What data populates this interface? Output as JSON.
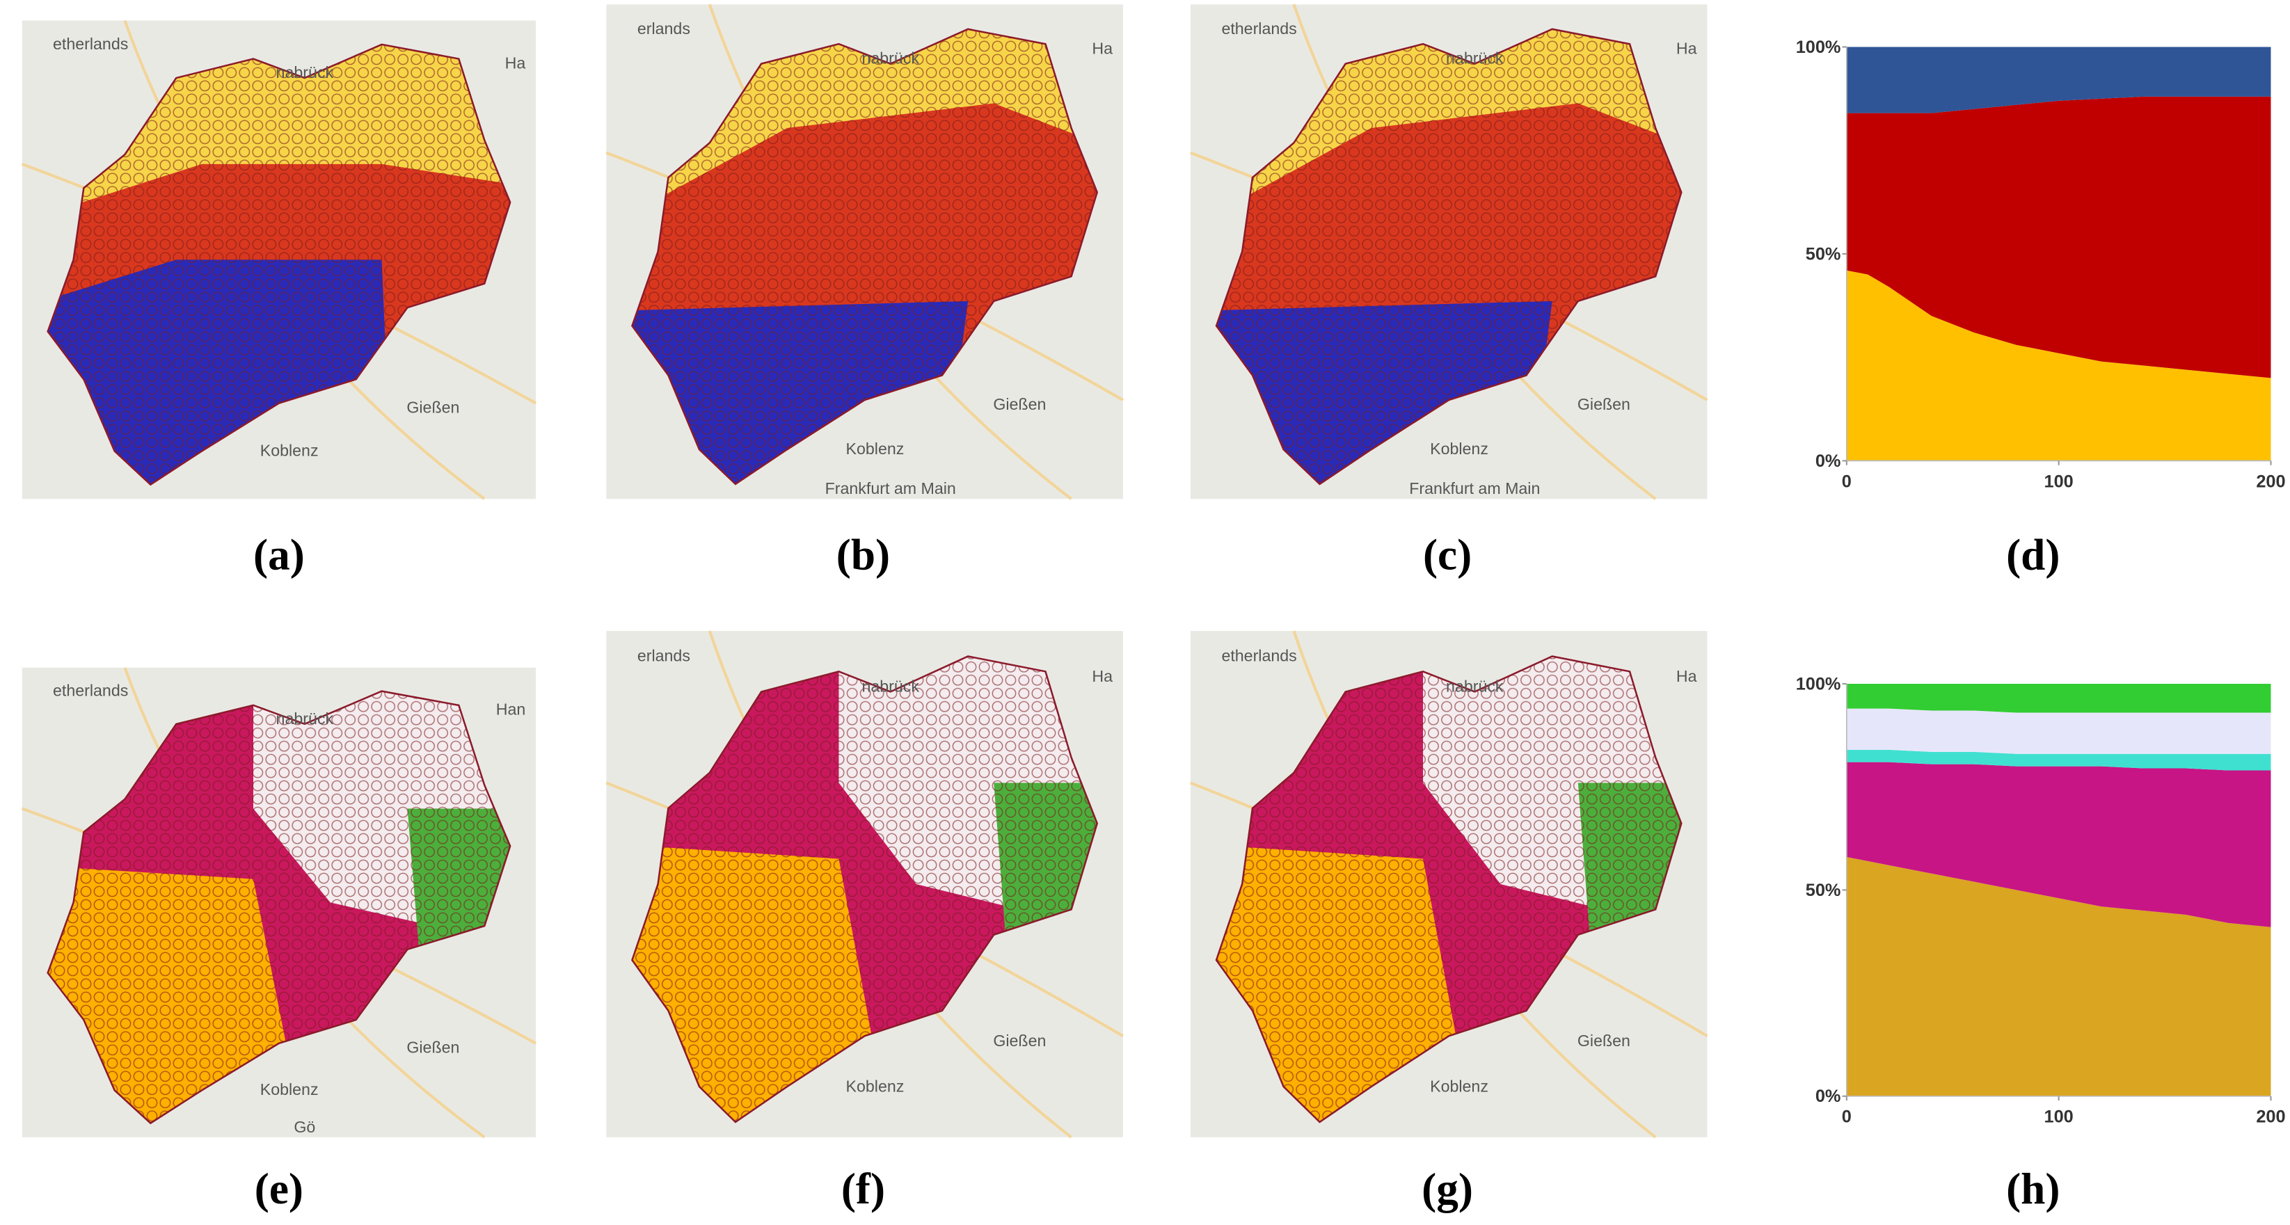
{
  "panels": [
    {
      "caption": "(a)",
      "map_labels": [
        "etherlands",
        "nabrück",
        "Ha",
        "Gießen",
        "Koblenz"
      ]
    },
    {
      "caption": "(b)",
      "map_labels": [
        "erlands",
        "nabrück",
        "Ha",
        "Gießen",
        "Koblenz",
        "Frankfurt am Main"
      ]
    },
    {
      "caption": "(c)",
      "map_labels": [
        "etherlands",
        "nabrück",
        "Ha",
        "Gießen",
        "Koblenz",
        "Frankfurt am Main"
      ]
    },
    {
      "caption": "(e)",
      "map_labels": [
        "etherlands",
        "nabrück",
        "Han",
        "Gießen",
        "Koblenz",
        "Gö"
      ]
    },
    {
      "caption": "(f)",
      "map_labels": [
        "erlands",
        "nabrück",
        "Ha",
        "Gießen",
        "Koblenz"
      ]
    },
    {
      "caption": "(g)",
      "map_labels": [
        "etherlands",
        "nabrück",
        "Ha",
        "Gießen",
        "Koblenz"
      ]
    }
  ],
  "chart_data": [
    {
      "type": "area",
      "stacked": true,
      "caption": "(d)",
      "x": [
        0,
        10,
        20,
        40,
        60,
        80,
        100,
        120,
        140,
        160,
        180,
        200
      ],
      "xlim": [
        0,
        200
      ],
      "xticks": [
        0,
        100,
        200
      ],
      "ylim": [
        0,
        100
      ],
      "yticks": [
        {
          "value": 0,
          "label": "0%"
        },
        {
          "value": 50,
          "label": "50%"
        },
        {
          "value": 100,
          "label": "100%"
        }
      ],
      "series": [
        {
          "color": "#ffc000",
          "values": [
            46,
            45,
            42,
            35,
            31,
            28,
            26,
            24,
            23,
            22,
            21,
            20
          ]
        },
        {
          "color": "#c00000",
          "values": [
            38,
            39,
            42,
            49,
            54,
            58,
            61,
            63.5,
            65,
            66,
            67,
            68
          ]
        },
        {
          "color": "#2f5597",
          "values": [
            16,
            16,
            16,
            16,
            15,
            14,
            13,
            12.5,
            12,
            12,
            12,
            12
          ]
        }
      ]
    },
    {
      "type": "area",
      "stacked": true,
      "caption": "(h)",
      "x": [
        0,
        20,
        40,
        60,
        80,
        100,
        120,
        140,
        160,
        180,
        200
      ],
      "xlim": [
        0,
        200
      ],
      "xticks": [
        0,
        100,
        200
      ],
      "ylim": [
        0,
        100
      ],
      "yticks": [
        {
          "value": 0,
          "label": "0%"
        },
        {
          "value": 50,
          "label": "50%"
        },
        {
          "value": 100,
          "label": "100%"
        }
      ],
      "series": [
        {
          "color": "#daa520",
          "values": [
            58,
            56,
            54,
            52,
            50,
            48,
            46,
            45,
            44,
            42,
            41
          ]
        },
        {
          "color": "#c71585",
          "values": [
            23,
            25,
            26.5,
            28.5,
            30,
            32,
            34,
            34.5,
            35.5,
            37,
            38
          ]
        },
        {
          "color": "#40e0d0",
          "values": [
            3,
            3,
            3,
            3,
            3,
            3,
            3,
            3.5,
            3.5,
            4,
            4
          ]
        },
        {
          "color": "#e6e6fa",
          "values": [
            10,
            10,
            10,
            10,
            10,
            10,
            10,
            10,
            10,
            10,
            10
          ]
        },
        {
          "color": "#32cd32",
          "values": [
            6,
            6,
            6.5,
            6.5,
            7,
            7,
            7,
            7,
            7,
            7,
            7
          ]
        }
      ]
    }
  ]
}
